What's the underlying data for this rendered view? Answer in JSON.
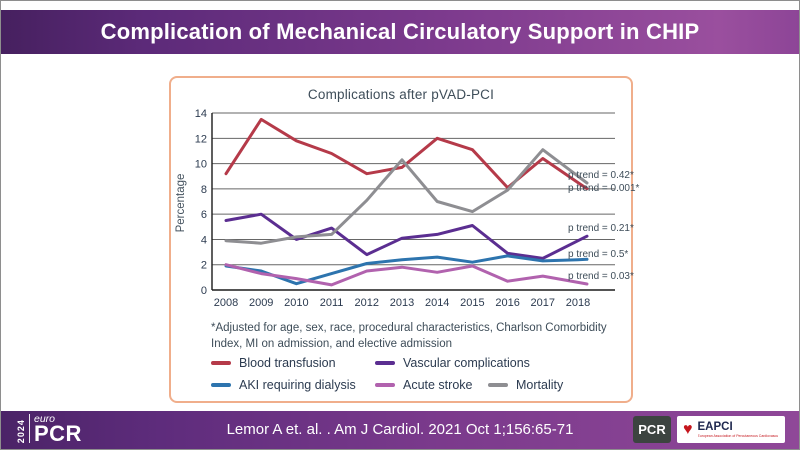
{
  "header": {
    "title": "Complication of Mechanical Circulatory Support in CHIP"
  },
  "chart_data": {
    "type": "line",
    "title": "Complications after pVAD-PCI",
    "xlabel": "",
    "ylabel": "Percentage",
    "ylim": [
      0,
      14
    ],
    "ytick_step": 2,
    "grid": "horizontal",
    "legend_position": "bottom",
    "categories": [
      "2008",
      "2009",
      "2010",
      "2011",
      "2012",
      "2013",
      "2014",
      "2015",
      "2016",
      "2017",
      "2018"
    ],
    "series": [
      {
        "name": "Blood transfusion",
        "color": "#b53a49",
        "values": [
          9.2,
          13.5,
          11.8,
          10.8,
          9.2,
          9.7,
          12.0,
          11.1,
          8.1,
          10.4,
          8.5
        ],
        "p_trend": "0.001*"
      },
      {
        "name": "Vascular complications",
        "color": "#5b2e91",
        "values": [
          5.5,
          6.0,
          4.0,
          4.9,
          2.8,
          4.1,
          4.4,
          5.1,
          2.9,
          2.5,
          3.9
        ],
        "p_trend": "0.21*"
      },
      {
        "name": "AKI requiring dialysis",
        "color": "#2d74ae",
        "values": [
          1.9,
          1.5,
          0.5,
          1.3,
          2.1,
          2.4,
          2.6,
          2.2,
          2.7,
          2.3,
          2.4
        ],
        "p_trend": "0.5*"
      },
      {
        "name": "Acute stroke",
        "color": "#b162ae",
        "values": [
          2.0,
          1.3,
          0.9,
          0.4,
          1.5,
          1.8,
          1.4,
          1.9,
          0.7,
          1.1,
          0.6
        ],
        "p_trend": "0.03*"
      },
      {
        "name": "Mortality",
        "color": "#8e8e92",
        "values": [
          3.9,
          3.7,
          4.2,
          4.4,
          7.1,
          10.3,
          7.0,
          6.2,
          7.9,
          11.1,
          9.0
        ],
        "p_trend": "0.42*"
      }
    ],
    "annotations": [
      {
        "label": "p trend = 0.42*",
        "series": "Mortality",
        "level": 9.0
      },
      {
        "label": "p trend = 0.001*",
        "series": "Blood transfusion",
        "level": 8.0
      },
      {
        "label": "p trend = 0.21*",
        "series": "Vascular complications",
        "level": 4.8
      },
      {
        "label": "p trend = 0.5*",
        "series": "AKI requiring dialysis",
        "level": 2.8
      },
      {
        "label": "p trend = 0.03*",
        "series": "Acute stroke",
        "level": 1.0
      }
    ],
    "footnote": "*Adjusted for age, sex, race, procedural characteristics, Charlson Comorbidity Index, MI on admission, and elective admission"
  },
  "footer": {
    "citation": "Lemor A et. al.  . Am J Cardiol. 2021 Oct 1;156:65-71",
    "europcr_logo": {
      "year": "2024",
      "euro": "euro",
      "pcr": "PCR"
    },
    "pcr_badge": "PCR",
    "eapci": {
      "name": "EAPCI",
      "tagline": "European Association of Percutaneous Cardiovascular Interventions"
    }
  },
  "icons": {
    "heart": "♥"
  },
  "colors": {
    "header_gradient_left": "#46205f",
    "header_gradient_right": "#9a4f9e",
    "panel_border": "#f0ae8b",
    "gridline": "#666666",
    "axis": "#1b1b1b",
    "chart_text": "#3e4d59"
  }
}
